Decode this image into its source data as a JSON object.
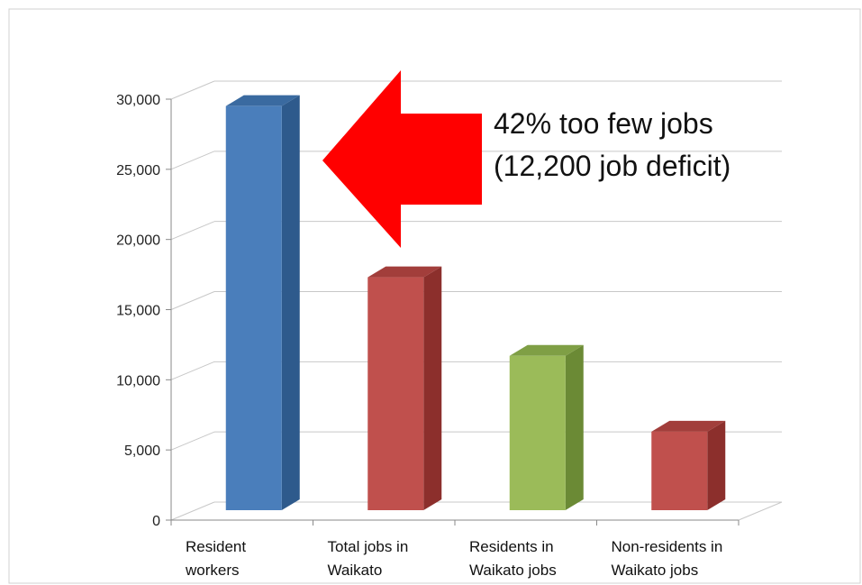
{
  "chart_data": {
    "type": "bar",
    "style": "3d-column",
    "categories": [
      [
        "Resident",
        "workers"
      ],
      [
        "Total jobs in",
        "Waikato"
      ],
      [
        "Residents in",
        "Waikato jobs"
      ],
      [
        "Non-residents in",
        "Waikato jobs"
      ]
    ],
    "values": [
      28800,
      16600,
      11000,
      5600
    ],
    "colors": [
      {
        "front": "#4a7ebb",
        "side": "#2e5a8c",
        "top": "#3a6aa0"
      },
      {
        "front": "#c0504d",
        "side": "#8c2f2c",
        "top": "#a23e3b"
      },
      {
        "front": "#9bbb59",
        "side": "#6b8a35",
        "top": "#7f9f45"
      },
      {
        "front": "#c0504d",
        "side": "#8c2f2c",
        "top": "#a23e3b"
      }
    ],
    "ylim": [
      0,
      30000
    ],
    "yticks": [
      "0",
      "5,000",
      "10,000",
      "15,000",
      "20,000",
      "25,000",
      "30,000"
    ],
    "gridlines": true,
    "title": "",
    "xlabel": "",
    "ylabel": "",
    "annotation": {
      "lines": [
        "42% too few jobs",
        "(12,200 job deficit)"
      ],
      "arrow_color": "#ff0000",
      "arrow_direction": "left"
    }
  }
}
